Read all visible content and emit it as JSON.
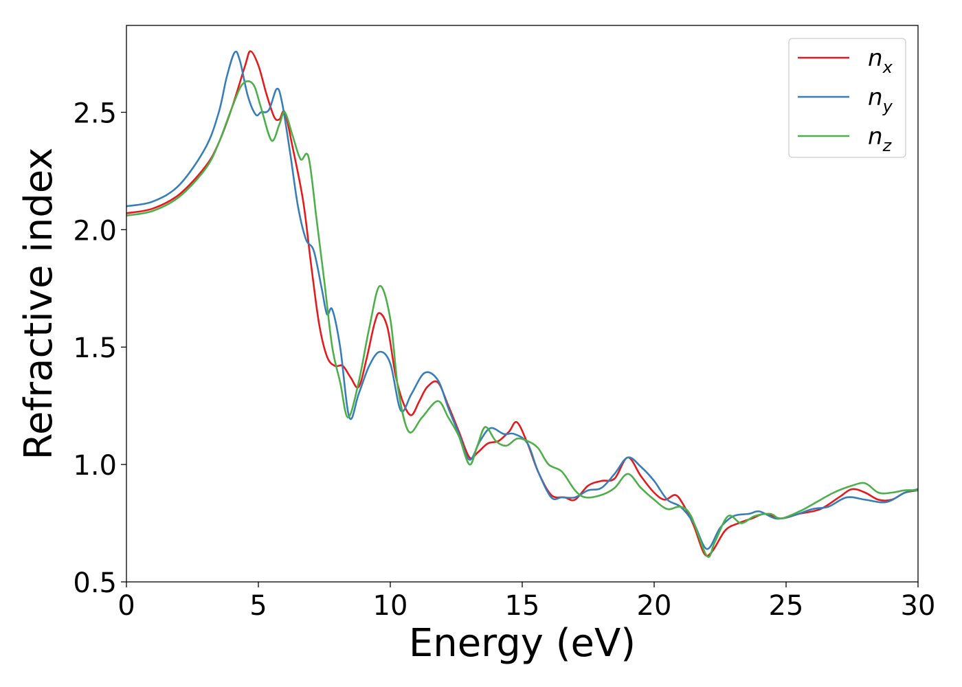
{
  "chart_data": {
    "type": "line",
    "xlabel": "Energy (eV)",
    "ylabel": "Refractive index",
    "xlim": [
      0,
      30
    ],
    "ylim": [
      0.5,
      2.87
    ],
    "x_ticks": [
      0,
      5,
      10,
      15,
      20,
      25,
      30
    ],
    "x_tick_labels": [
      "0",
      "5",
      "10",
      "15",
      "20",
      "25",
      "30"
    ],
    "y_ticks": [
      0.5,
      1.0,
      1.5,
      2.0,
      2.5
    ],
    "y_tick_labels": [
      "0.5",
      "1.0",
      "1.5",
      "2.0",
      "2.5"
    ],
    "grid": false,
    "legend_position": "top-right",
    "series": [
      {
        "name": "n",
        "subscript": "x",
        "color": "#e41a1c",
        "points": [
          [
            0,
            2.07
          ],
          [
            1,
            2.09
          ],
          [
            2,
            2.15
          ],
          [
            3,
            2.27
          ],
          [
            3.5,
            2.37
          ],
          [
            4,
            2.52
          ],
          [
            4.5,
            2.7
          ],
          [
            4.7,
            2.76
          ],
          [
            5.0,
            2.7
          ],
          [
            5.3,
            2.58
          ],
          [
            5.6,
            2.48
          ],
          [
            5.8,
            2.47
          ],
          [
            6.0,
            2.5
          ],
          [
            6.3,
            2.35
          ],
          [
            6.7,
            2.12
          ],
          [
            7.0,
            1.85
          ],
          [
            7.3,
            1.6
          ],
          [
            7.6,
            1.46
          ],
          [
            7.9,
            1.42
          ],
          [
            8.2,
            1.42
          ],
          [
            8.5,
            1.37
          ],
          [
            8.8,
            1.33
          ],
          [
            9.1,
            1.45
          ],
          [
            9.4,
            1.6
          ],
          [
            9.6,
            1.645
          ],
          [
            9.9,
            1.58
          ],
          [
            10.2,
            1.38
          ],
          [
            10.5,
            1.26
          ],
          [
            10.8,
            1.21
          ],
          [
            11.1,
            1.27
          ],
          [
            11.4,
            1.33
          ],
          [
            11.8,
            1.35
          ],
          [
            12.2,
            1.25
          ],
          [
            12.6,
            1.14
          ],
          [
            13.0,
            1.03
          ],
          [
            13.3,
            1.05
          ],
          [
            13.7,
            1.09
          ],
          [
            14.1,
            1.1
          ],
          [
            14.5,
            1.14
          ],
          [
            14.8,
            1.18
          ],
          [
            15.2,
            1.09
          ],
          [
            15.6,
            0.97
          ],
          [
            16.1,
            0.87
          ],
          [
            16.6,
            0.86
          ],
          [
            17.0,
            0.85
          ],
          [
            17.5,
            0.91
          ],
          [
            18.0,
            0.93
          ],
          [
            18.5,
            0.94
          ],
          [
            19.0,
            1.03
          ],
          [
            19.5,
            0.95
          ],
          [
            20.0,
            0.88
          ],
          [
            20.4,
            0.85
          ],
          [
            20.8,
            0.87
          ],
          [
            21.1,
            0.83
          ],
          [
            21.5,
            0.74
          ],
          [
            21.9,
            0.62
          ],
          [
            22.2,
            0.63
          ],
          [
            22.7,
            0.72
          ],
          [
            23.2,
            0.75
          ],
          [
            23.7,
            0.77
          ],
          [
            24.2,
            0.79
          ],
          [
            24.8,
            0.77
          ],
          [
            25.5,
            0.79
          ],
          [
            26.3,
            0.81
          ],
          [
            27.0,
            0.86
          ],
          [
            27.5,
            0.895
          ],
          [
            28.0,
            0.88
          ],
          [
            28.5,
            0.85
          ],
          [
            29.0,
            0.85
          ],
          [
            29.5,
            0.88
          ],
          [
            30.0,
            0.89
          ]
        ]
      },
      {
        "name": "n",
        "subscript": "y",
        "color": "#377eb8",
        "points": [
          [
            0,
            2.1
          ],
          [
            1,
            2.12
          ],
          [
            2,
            2.19
          ],
          [
            3,
            2.35
          ],
          [
            3.5,
            2.5
          ],
          [
            3.8,
            2.65
          ],
          [
            4.1,
            2.755
          ],
          [
            4.3,
            2.72
          ],
          [
            4.6,
            2.57
          ],
          [
            4.9,
            2.49
          ],
          [
            5.1,
            2.5
          ],
          [
            5.4,
            2.51
          ],
          [
            5.7,
            2.6
          ],
          [
            5.9,
            2.54
          ],
          [
            6.2,
            2.33
          ],
          [
            6.5,
            2.1
          ],
          [
            6.8,
            1.96
          ],
          [
            7.1,
            1.91
          ],
          [
            7.4,
            1.75
          ],
          [
            7.6,
            1.64
          ],
          [
            7.8,
            1.66
          ],
          [
            8.1,
            1.5
          ],
          [
            8.45,
            1.2
          ],
          [
            8.8,
            1.3
          ],
          [
            9.2,
            1.42
          ],
          [
            9.6,
            1.48
          ],
          [
            10.0,
            1.43
          ],
          [
            10.4,
            1.23
          ],
          [
            10.8,
            1.3
          ],
          [
            11.3,
            1.39
          ],
          [
            11.8,
            1.36
          ],
          [
            12.2,
            1.24
          ],
          [
            12.6,
            1.13
          ],
          [
            13.0,
            1.02
          ],
          [
            13.4,
            1.1
          ],
          [
            13.8,
            1.155
          ],
          [
            14.3,
            1.13
          ],
          [
            14.7,
            1.13
          ],
          [
            15.2,
            1.09
          ],
          [
            15.6,
            0.97
          ],
          [
            16.1,
            0.86
          ],
          [
            16.5,
            0.86
          ],
          [
            17.0,
            0.86
          ],
          [
            17.5,
            0.89
          ],
          [
            18.0,
            0.9
          ],
          [
            18.5,
            0.96
          ],
          [
            19.0,
            1.03
          ],
          [
            19.5,
            0.99
          ],
          [
            20.0,
            0.93
          ],
          [
            20.5,
            0.85
          ],
          [
            21.0,
            0.82
          ],
          [
            21.5,
            0.75
          ],
          [
            22.0,
            0.64
          ],
          [
            22.5,
            0.73
          ],
          [
            23.0,
            0.78
          ],
          [
            23.6,
            0.79
          ],
          [
            24.0,
            0.8
          ],
          [
            24.6,
            0.77
          ],
          [
            25.2,
            0.78
          ],
          [
            26.0,
            0.81
          ],
          [
            26.6,
            0.82
          ],
          [
            27.3,
            0.86
          ],
          [
            28.0,
            0.85
          ],
          [
            28.8,
            0.84
          ],
          [
            29.5,
            0.88
          ],
          [
            30.0,
            0.895
          ]
        ]
      },
      {
        "name": "n",
        "subscript": "z",
        "color": "#4daf4a",
        "points": [
          [
            0,
            2.06
          ],
          [
            1,
            2.08
          ],
          [
            2,
            2.14
          ],
          [
            3,
            2.26
          ],
          [
            3.5,
            2.37
          ],
          [
            4.0,
            2.52
          ],
          [
            4.4,
            2.62
          ],
          [
            4.8,
            2.62
          ],
          [
            5.1,
            2.52
          ],
          [
            5.5,
            2.38
          ],
          [
            5.8,
            2.45
          ],
          [
            6.0,
            2.5
          ],
          [
            6.3,
            2.4
          ],
          [
            6.6,
            2.3
          ],
          [
            6.9,
            2.31
          ],
          [
            7.2,
            2.05
          ],
          [
            7.5,
            1.78
          ],
          [
            7.8,
            1.5
          ],
          [
            8.1,
            1.35
          ],
          [
            8.4,
            1.2
          ],
          [
            8.8,
            1.35
          ],
          [
            9.2,
            1.58
          ],
          [
            9.6,
            1.76
          ],
          [
            10.0,
            1.62
          ],
          [
            10.3,
            1.32
          ],
          [
            10.7,
            1.14
          ],
          [
            11.2,
            1.2
          ],
          [
            11.8,
            1.27
          ],
          [
            12.2,
            1.2
          ],
          [
            12.6,
            1.12
          ],
          [
            13.0,
            1.0
          ],
          [
            13.3,
            1.08
          ],
          [
            13.6,
            1.16
          ],
          [
            14.0,
            1.1
          ],
          [
            14.4,
            1.08
          ],
          [
            14.8,
            1.11
          ],
          [
            15.2,
            1.1
          ],
          [
            15.6,
            1.07
          ],
          [
            16.0,
            1.0
          ],
          [
            16.5,
            0.97
          ],
          [
            17.0,
            0.89
          ],
          [
            17.4,
            0.86
          ],
          [
            18.0,
            0.87
          ],
          [
            18.5,
            0.9
          ],
          [
            19.0,
            0.96
          ],
          [
            19.5,
            0.9
          ],
          [
            20.0,
            0.85
          ],
          [
            20.5,
            0.81
          ],
          [
            21.0,
            0.82
          ],
          [
            21.4,
            0.78
          ],
          [
            22.0,
            0.61
          ],
          [
            22.3,
            0.67
          ],
          [
            22.8,
            0.78
          ],
          [
            23.3,
            0.75
          ],
          [
            23.8,
            0.78
          ],
          [
            24.4,
            0.79
          ],
          [
            24.8,
            0.77
          ],
          [
            25.5,
            0.8
          ],
          [
            26.0,
            0.83
          ],
          [
            26.8,
            0.88
          ],
          [
            27.5,
            0.91
          ],
          [
            28.0,
            0.92
          ],
          [
            28.5,
            0.88
          ],
          [
            29.0,
            0.88
          ],
          [
            29.5,
            0.89
          ],
          [
            30.0,
            0.89
          ]
        ]
      }
    ]
  }
}
